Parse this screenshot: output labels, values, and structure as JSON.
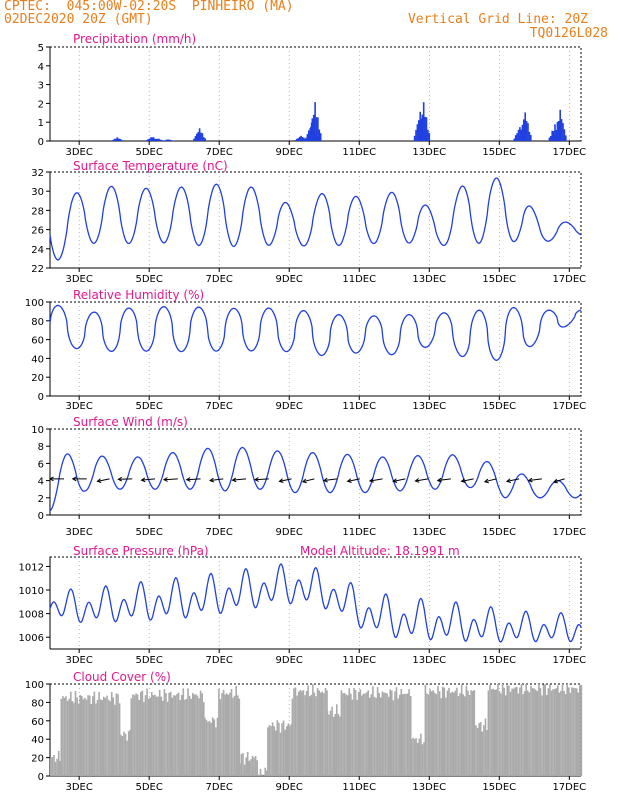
{
  "header": {
    "line1": "CPTEC:  045:00W-02:20S  PINHEIRO (MA)",
    "line2": "02DEC2020 20Z (GMT)",
    "grid_note": "Vertical Grid Line: 20Z",
    "code": "TQ0126L028"
  },
  "model_altitude": "Model Altitude: 18.1991 m",
  "colors": {
    "header": "#e87f1c",
    "title": "#e0188c",
    "series": "#2040e0",
    "cloud": "#aaaaaa",
    "grid": "#888888"
  },
  "x_ticks": [
    "3DEC",
    "5DEC",
    "7DEC",
    "9DEC",
    "11DEC",
    "13DEC",
    "15DEC",
    "17DEC"
  ],
  "chart_data": [
    {
      "type": "bar",
      "title": "Precipitation (mm/h)",
      "ylim": [
        0,
        5
      ],
      "yticks": [
        "0",
        "1",
        "2",
        "3",
        "4",
        "5"
      ],
      "x_range_days": [
        0.0,
        15.167
      ],
      "bursts": [
        {
          "day": 1.9,
          "peak": 0.2
        },
        {
          "day": 2.9,
          "peak": 0.25
        },
        {
          "day": 3.05,
          "peak": 0.15
        },
        {
          "day": 3.35,
          "peak": 0.1
        },
        {
          "day": 4.25,
          "peak": 0.7
        },
        {
          "day": 7.15,
          "peak": 0.3
        },
        {
          "day": 7.55,
          "peak": 2.1
        },
        {
          "day": 7.45,
          "peak": 1.0
        },
        {
          "day": 10.65,
          "peak": 2.1
        },
        {
          "day": 10.55,
          "peak": 1.6
        },
        {
          "day": 13.55,
          "peak": 1.6
        },
        {
          "day": 14.55,
          "peak": 1.7
        },
        {
          "day": 14.4,
          "peak": 0.9
        },
        {
          "day": 13.4,
          "peak": 0.8
        }
      ]
    },
    {
      "type": "line",
      "title": "Surface Temperature (nC)",
      "ylim": [
        22,
        32
      ],
      "yticks": [
        "22",
        "24",
        "26",
        "28",
        "30",
        "32"
      ],
      "daily_max": [
        28.7,
        30.2,
        30.6,
        30.2,
        30.5,
        30.8,
        30.3,
        28.3,
        30.2,
        29.2,
        30.1,
        28.0,
        31.3,
        31.4,
        27.3,
        26.6
      ],
      "daily_min": [
        22.3,
        24.6,
        24.5,
        24.7,
        24.4,
        24.2,
        24.4,
        24.3,
        24.3,
        24.5,
        24.7,
        24.3,
        24.5,
        24.8,
        24.6,
        25.4
      ]
    },
    {
      "type": "line",
      "title": "Relative Humidity (%)",
      "ylim": [
        0,
        100
      ],
      "yticks": [
        "0",
        "20",
        "40",
        "60",
        "80",
        "100"
      ],
      "daily_max": [
        99,
        88,
        93,
        95,
        95,
        93,
        94,
        92,
        87,
        85,
        86,
        88,
        90,
        95,
        91,
        92
      ],
      "daily_min": [
        55,
        49,
        47,
        48,
        47,
        48,
        48,
        47,
        42,
        47,
        43,
        55,
        38,
        38,
        58,
        80
      ]
    },
    {
      "type": "line",
      "title": "Surface Wind (m/s)",
      "ylim": [
        0,
        10
      ],
      "yticks": [
        "0",
        "2",
        "4",
        "6",
        "8",
        "10"
      ],
      "daily_max": [
        7.0,
        7.2,
        6.5,
        7.0,
        7.5,
        8.0,
        7.7,
        7.2,
        7.3,
        6.8,
        6.7,
        7.1,
        6.9,
        5.5,
        4.0
      ],
      "daily_min": [
        0.5,
        2.8,
        3.0,
        3.0,
        3.0,
        2.8,
        3.0,
        2.6,
        2.6,
        2.6,
        2.8,
        3.0,
        3.2,
        2.0,
        2.0
      ],
      "wind_arrow_directions_deg": [
        90,
        90,
        60,
        85,
        75,
        80,
        80,
        70,
        75,
        80,
        60,
        55,
        70,
        60,
        65,
        60,
        65,
        70,
        60,
        55,
        60,
        70,
        50
      ]
    },
    {
      "type": "line",
      "title": "Surface Pressure (hPa)",
      "ylim": [
        1005,
        1012.8
      ],
      "yticks": [
        "1006",
        "1008",
        "1010",
        "1012"
      ],
      "daily_max": [
        1010.0,
        1010.2,
        1010.5,
        1010.9,
        1011.2,
        1011.6,
        1012.0,
        1012.4,
        1011.6,
        1010.0,
        1009.5,
        1009.2,
        1008.9,
        1008.4,
        1008.1
      ],
      "daily_min": [
        1007.3,
        1006.8,
        1006.9,
        1007.0,
        1007.2,
        1007.6,
        1008.1,
        1008.4,
        1007.9,
        1006.1,
        1005.4,
        1005.3,
        1005.2,
        1005.2,
        1005.3
      ]
    },
    {
      "type": "bar",
      "title": "Cloud Cover (%)",
      "ylim": [
        0,
        100
      ],
      "yticks": [
        "0",
        "20",
        "40",
        "60",
        "80",
        "100"
      ],
      "segments": [
        {
          "from": 0.0,
          "to": 0.3,
          "value": 20
        },
        {
          "from": 0.3,
          "to": 2.0,
          "value": 85
        },
        {
          "from": 2.0,
          "to": 2.3,
          "value": 45
        },
        {
          "from": 2.3,
          "to": 4.4,
          "value": 88
        },
        {
          "from": 4.4,
          "to": 4.8,
          "value": 60
        },
        {
          "from": 4.8,
          "to": 5.4,
          "value": 90
        },
        {
          "from": 5.4,
          "to": 5.9,
          "value": 20
        },
        {
          "from": 5.9,
          "to": 6.2,
          "value": 3
        },
        {
          "from": 6.2,
          "to": 6.9,
          "value": 55
        },
        {
          "from": 6.9,
          "to": 7.9,
          "value": 92
        },
        {
          "from": 7.9,
          "to": 8.3,
          "value": 70
        },
        {
          "from": 8.3,
          "to": 10.3,
          "value": 90
        },
        {
          "from": 10.3,
          "to": 10.7,
          "value": 40
        },
        {
          "from": 10.7,
          "to": 12.1,
          "value": 92
        },
        {
          "from": 12.1,
          "to": 12.5,
          "value": 55
        },
        {
          "from": 12.5,
          "to": 15.17,
          "value": 95
        }
      ]
    }
  ]
}
